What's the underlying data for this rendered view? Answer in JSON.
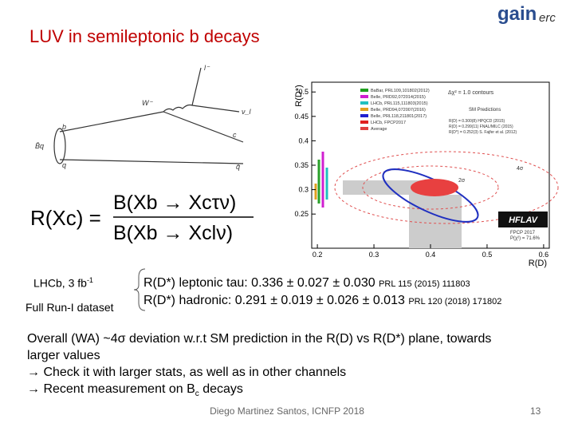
{
  "header": {
    "title": "LUV in semileptonic b decays",
    "logo_main": "gain",
    "logo_side": "erc"
  },
  "diagram": {
    "labels": [
      "l⁻",
      "ν_l",
      "W⁻",
      "b",
      "c",
      "B̄q",
      "q",
      "q̄"
    ]
  },
  "formula": {
    "lhs": "R(Xc) =",
    "numerator": "B(Xb → Xcτν)",
    "denominator": "B(Xb → Xclν)"
  },
  "plot": {
    "x_label": "R(D)",
    "y_label": "R(D*)",
    "xlim": [
      0.19,
      0.61
    ],
    "ylim": [
      0.18,
      0.52
    ],
    "xticks": [
      0.2,
      0.3,
      0.4,
      0.5,
      0.6
    ],
    "yticks": [
      0.25,
      0.3,
      0.35,
      0.4,
      0.45,
      0.5
    ],
    "legend": [
      "BaBar, PRL109,101802(2012)",
      "Belle, PRD92,072014(2015)",
      "LHCb, PRL115,111803(2015)",
      "Belle, PRD94,072007(2016)",
      "Belle, PRL118,211801(2017)",
      "LHCb, FPCP2017",
      "Average"
    ],
    "contours": "Δχ² = 1.0 contours",
    "sm_title": "SM Predictions",
    "sm_lines": [
      "R(D) = 0.300(8) HPQCD (2015)",
      "R(D) = 0.299(11) FNAL/MILC (2015)",
      "R(D*) = 0.252(3) S. Fajfer et al. (2012)"
    ],
    "sigma_labels": [
      "4σ",
      "2σ"
    ],
    "badge": "HFLAV",
    "badge_sub": "FPCP 2017",
    "badge_p": "P(χ²) = 71.6%"
  },
  "left_labels": {
    "lhcb": "LHCb, 3 fb",
    "lhcb_sup": "-1",
    "run": "Full Run-I dataset"
  },
  "results": [
    {
      "text": "R(D*) leptonic tau: 0.336 ± 0.027 ± 0.030",
      "ref": "PRL 115 (2015) 111803"
    },
    {
      "text": "R(D*) hadronic: 0.291 ± 0.019 ± 0.026 ± 0.013",
      "ref": "PRL 120 (2018) 171802"
    }
  ],
  "body": {
    "line1": "Overall (WA) ~4σ deviation w.r.t SM prediction in the R(D) vs R(D*) plane, towards",
    "line2": "larger values",
    "bullet1": "Check it with larger stats, as well as in other channels",
    "bullet2": "Recent measurement on B",
    "bullet2_sub": "c",
    "bullet2_end": " decays"
  },
  "footer": {
    "author": "Diego Martinez Santos, ICNFP 2018",
    "page": "13"
  }
}
